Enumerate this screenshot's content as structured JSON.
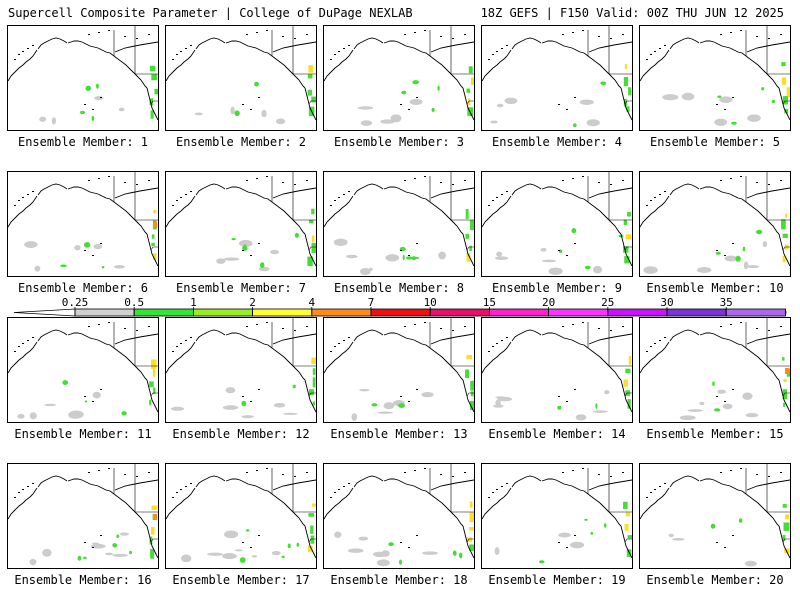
{
  "header": {
    "title_left": "Supercell Composite Parameter | College of DuPage NEXLAB",
    "title_right": "18Z GEFS | F150 Valid: 00Z THU JUN 12 2025"
  },
  "colorbar": {
    "labels": [
      "0.25",
      "0.5",
      "1",
      "2",
      "4",
      "7",
      "10",
      "15",
      "20",
      "25",
      "30",
      "35"
    ],
    "colors": [
      "#d0d0d0",
      "#33e633",
      "#99ee22",
      "#ffff33",
      "#ff8c1a",
      "#ee1111",
      "#e8106b",
      "#ff22cc",
      "#ff33ff",
      "#cc11ff",
      "#7a33d4",
      "#aa66ee",
      "#33e6e6"
    ]
  },
  "panels": [
    {
      "caption": "Ensemble Member: 1"
    },
    {
      "caption": "Ensemble Member: 2"
    },
    {
      "caption": "Ensemble Member: 3"
    },
    {
      "caption": "Ensemble Member: 4"
    },
    {
      "caption": "Ensemble Member: 5"
    },
    {
      "caption": "Ensemble Member: 6"
    },
    {
      "caption": "Ensemble Member: 7"
    },
    {
      "caption": "Ensemble Member: 8"
    },
    {
      "caption": "Ensemble Member: 9"
    },
    {
      "caption": "Ensemble Member: 10"
    },
    {
      "caption": "Ensemble Member: 11"
    },
    {
      "caption": "Ensemble Member: 12"
    },
    {
      "caption": "Ensemble Member: 13"
    },
    {
      "caption": "Ensemble Member: 14"
    },
    {
      "caption": "Ensemble Member: 15"
    },
    {
      "caption": "Ensemble Member: 16"
    },
    {
      "caption": "Ensemble Member: 17"
    },
    {
      "caption": "Ensemble Member: 18"
    },
    {
      "caption": "Ensemble Member: 19"
    },
    {
      "caption": "Ensemble Member: 20"
    }
  ]
}
